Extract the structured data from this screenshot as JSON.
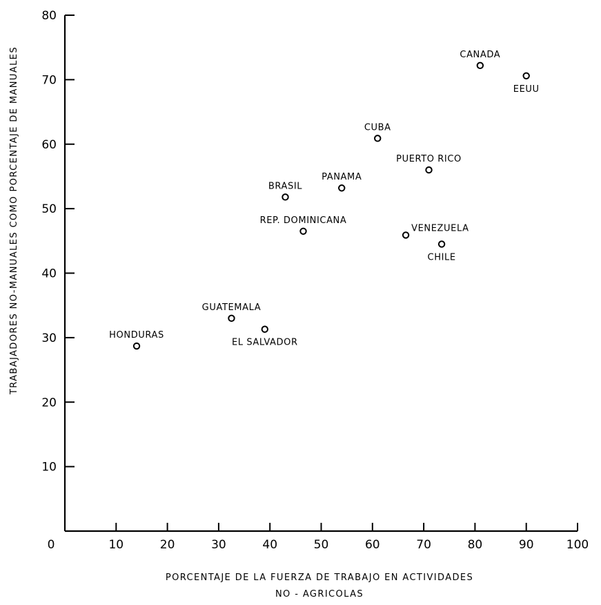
{
  "chart_data": {
    "type": "scatter",
    "title": "",
    "xlabel": "PORCENTAJE DE LA FUERZA DE TRABAJO EN ACTIVIDADES",
    "xlabel_line2": "NO - AGRICOLAS",
    "ylabel": "TRABAJADORES NO-MANUALES COMO PORCENTAJE DE MANUALES",
    "xlim": [
      0,
      100
    ],
    "ylim": [
      0,
      80
    ],
    "xticks": [
      0,
      10,
      20,
      30,
      40,
      50,
      60,
      70,
      80,
      90,
      100
    ],
    "yticks": [
      10,
      20,
      30,
      40,
      50,
      60,
      70,
      80
    ],
    "grid": false,
    "points": [
      {
        "label": "HONDURAS",
        "x": 14,
        "y": 28.7,
        "label_pos": "above"
      },
      {
        "label": "GUATEMALA",
        "x": 32.5,
        "y": 33,
        "label_pos": "above"
      },
      {
        "label": "EL SALVADOR",
        "x": 39,
        "y": 31.3,
        "label_pos": "below"
      },
      {
        "label": "BRASIL",
        "x": 43,
        "y": 51.8,
        "label_pos": "above"
      },
      {
        "label": "REP. DOMINICANA",
        "x": 46.5,
        "y": 46.5,
        "label_pos": "above"
      },
      {
        "label": "PANAMA",
        "x": 54,
        "y": 53.2,
        "label_pos": "above"
      },
      {
        "label": "CUBA",
        "x": 61,
        "y": 60.9,
        "label_pos": "above"
      },
      {
        "label": "VENEZUELA",
        "x": 66.5,
        "y": 45.9,
        "label_pos": "right"
      },
      {
        "label": "PUERTO RICO",
        "x": 71,
        "y": 56,
        "label_pos": "above"
      },
      {
        "label": "CHILE",
        "x": 73.5,
        "y": 44.5,
        "label_pos": "below"
      },
      {
        "label": "CANADA",
        "x": 81,
        "y": 72.2,
        "label_pos": "above"
      },
      {
        "label": "EEUU",
        "x": 90,
        "y": 70.6,
        "label_pos": "below"
      }
    ]
  }
}
